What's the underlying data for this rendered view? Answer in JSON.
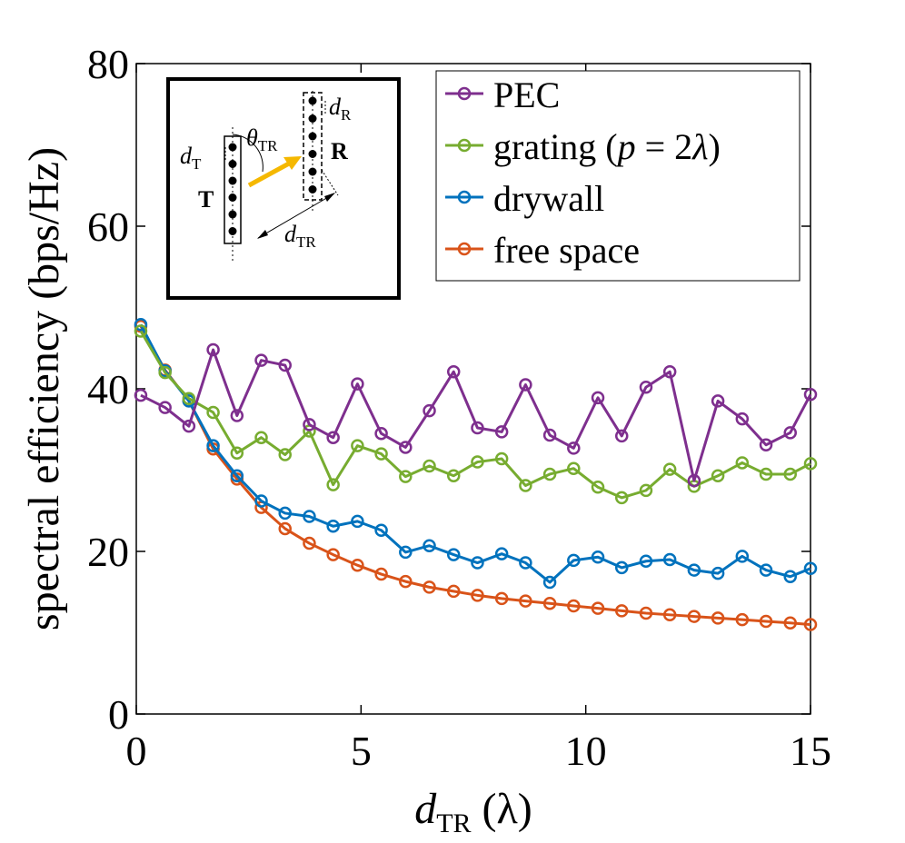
{
  "chart_data": {
    "type": "line",
    "xlabel": "d_TR (λ)",
    "xlabel_parts": {
      "symbol": "d",
      "subscript": "TR",
      "unit": "(λ)"
    },
    "ylabel": "spectral efficiency (bps/Hz)",
    "xlim": [
      0,
      15
    ],
    "ylim": [
      0,
      80
    ],
    "x_ticks": [
      "0",
      "5",
      "10",
      "15"
    ],
    "y_ticks": [
      "0",
      "20",
      "40",
      "60",
      "80"
    ],
    "grid": false,
    "legend_position": "top-right",
    "x": [
      0.1,
      0.64,
      1.17,
      1.71,
      2.24,
      2.78,
      3.31,
      3.85,
      4.38,
      4.92,
      5.45,
      5.99,
      6.52,
      7.06,
      7.59,
      8.13,
      8.66,
      9.2,
      9.73,
      10.27,
      10.8,
      11.34,
      11.87,
      12.41,
      12.94,
      13.48,
      14.01,
      14.55,
      15.0
    ],
    "series": [
      {
        "name": "PEC",
        "color": "#7E2F8E",
        "values": [
          39.2,
          37.7,
          35.4,
          44.8,
          36.7,
          43.5,
          42.9,
          35.6,
          34.0,
          40.6,
          34.5,
          32.8,
          37.3,
          42.1,
          35.2,
          34.7,
          40.5,
          34.3,
          32.7,
          38.9,
          34.2,
          40.2,
          42.1,
          28.7,
          38.5,
          36.3,
          33.1,
          34.6,
          39.3
        ]
      },
      {
        "name": "grating (p = 2λ)",
        "color": "#77AC30",
        "values": [
          47.1,
          42.0,
          38.8,
          37.1,
          32.1,
          34.0,
          31.9,
          34.8,
          28.2,
          33.0,
          32.0,
          29.2,
          30.5,
          29.3,
          31.0,
          31.4,
          28.1,
          29.5,
          30.2,
          27.9,
          26.6,
          27.5,
          30.1,
          28.0,
          29.3,
          30.9,
          29.5,
          29.5,
          30.8
        ]
      },
      {
        "name": "drywall",
        "color": "#0072BD",
        "values": [
          47.9,
          42.2,
          38.5,
          33.0,
          29.3,
          26.2,
          24.7,
          24.3,
          23.1,
          23.7,
          22.6,
          19.9,
          20.7,
          19.6,
          18.6,
          19.7,
          18.6,
          16.2,
          18.9,
          19.3,
          18.0,
          18.8,
          19.0,
          17.7,
          17.3,
          19.4,
          17.7,
          16.9,
          17.9
        ]
      },
      {
        "name": "free space",
        "color": "#D95319",
        "values": [
          47.7,
          42.3,
          38.5,
          32.6,
          28.9,
          25.4,
          22.8,
          21.0,
          19.6,
          18.3,
          17.2,
          16.3,
          15.6,
          15.1,
          14.6,
          14.2,
          13.9,
          13.6,
          13.3,
          13.0,
          12.7,
          12.4,
          12.2,
          12.0,
          11.8,
          11.6,
          11.4,
          11.2,
          11.0
        ]
      }
    ],
    "legend_labels": {
      "pec": "PEC",
      "grating_prefix": "grating (",
      "grating_p": "p",
      "grating_eq": " = 2",
      "grating_lambda": "λ",
      "grating_suffix": ")",
      "drywall": "drywall",
      "free_space": "free space"
    },
    "inset": {
      "theta": "θ",
      "theta_sub": "TR",
      "d": "d",
      "d_T_sub": "T",
      "d_R_sub": "R",
      "d_TR_sub": "TR",
      "T_label": "T",
      "R_label": "R",
      "arrow_color": "#F5B800"
    }
  }
}
